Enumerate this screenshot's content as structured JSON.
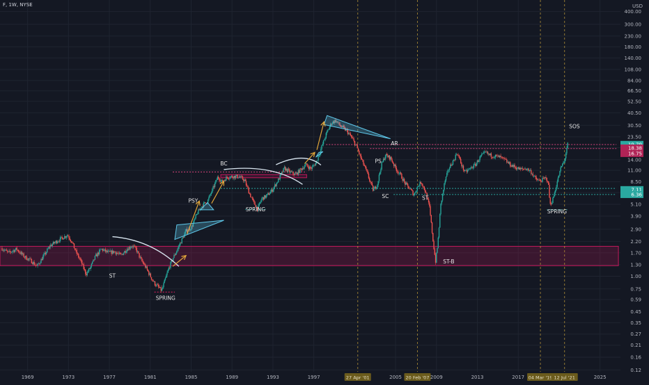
{
  "header": {
    "symbol": "F, 1W, NYSE"
  },
  "chart_data": {
    "type": "line",
    "symbol": "F",
    "interval": "1W",
    "exchange": "NYSE",
    "currency": "USD",
    "y_scale": "log",
    "ylim": [
      0.115,
      520
    ],
    "xlim": [
      1966.3,
      2027
    ],
    "y_ticks": [
      "400.00",
      "300.00",
      "230.00",
      "180.00",
      "140.00",
      "108.00",
      "84.00",
      "66.50",
      "52.50",
      "40.50",
      "30.50",
      "23.50",
      "18.38",
      "14.00",
      "11.00",
      "8.50",
      "6.65",
      "5.10",
      "3.90",
      "2.90",
      "2.20",
      "1.70",
      "1.30",
      "1.00",
      "0.75",
      "0.59",
      "0.45",
      "0.35",
      "0.27",
      "0.21",
      "0.16",
      "0.12"
    ],
    "x_ticks": [
      "1969",
      "1973",
      "1977",
      "1981",
      "1985",
      "1989",
      "1993",
      "1997",
      "2005",
      "2009",
      "2013",
      "2017",
      "2025"
    ],
    "x_highlight_labels": [
      {
        "text": "27 Apr '01",
        "x": 2001.3
      },
      {
        "text": "20 Feb '07",
        "x": 2007.14
      },
      {
        "text": "04 Mar '19",
        "x": 2019.17
      },
      {
        "text": "12 Jul '21",
        "x": 2021.53
      }
    ],
    "price_labels": [
      {
        "text": "19.79",
        "y": 19.79,
        "color": "#2aa8a0"
      },
      {
        "text": "18.38",
        "y": 18.38,
        "color": "#b02356"
      },
      {
        "text": "16.75",
        "y": 16.75,
        "color": "#b02356"
      },
      {
        "text": "7.11",
        "y": 7.11,
        "color": "#2aa8a0"
      },
      {
        "text": "6.36",
        "y": 6.36,
        "color": "#2aa8a0"
      }
    ],
    "series": [
      {
        "values": [
          [
            1966.5,
            1.9
          ],
          [
            1967.2,
            1.7
          ],
          [
            1968.0,
            1.85
          ],
          [
            1968.8,
            1.55
          ],
          [
            1969.5,
            1.4
          ],
          [
            1970.0,
            1.25
          ],
          [
            1970.6,
            1.55
          ],
          [
            1971.3,
            2.0
          ],
          [
            1972.2,
            2.3
          ],
          [
            1973.0,
            2.55
          ],
          [
            1973.4,
            2.2
          ],
          [
            1973.8,
            1.75
          ],
          [
            1974.3,
            1.4
          ],
          [
            1974.8,
            1.05
          ],
          [
            1975.2,
            1.2
          ],
          [
            1975.7,
            1.55
          ],
          [
            1976.3,
            1.85
          ],
          [
            1977.0,
            1.7
          ],
          [
            1977.6,
            1.75
          ],
          [
            1978.2,
            1.6
          ],
          [
            1978.8,
            1.85
          ],
          [
            1979.3,
            2.0
          ],
          [
            1979.7,
            1.85
          ],
          [
            1980.1,
            1.5
          ],
          [
            1980.6,
            1.25
          ],
          [
            1981.1,
            1.0
          ],
          [
            1981.5,
            0.85
          ],
          [
            1981.9,
            0.78
          ],
          [
            1982.2,
            0.72
          ],
          [
            1982.5,
            0.9
          ],
          [
            1982.9,
            1.2
          ],
          [
            1983.3,
            1.5
          ],
          [
            1983.7,
            1.8
          ],
          [
            1984.1,
            2.2
          ],
          [
            1984.6,
            2.8
          ],
          [
            1985.1,
            3.0
          ],
          [
            1985.7,
            4.2
          ],
          [
            1986.2,
            5.0
          ],
          [
            1986.7,
            5.5
          ],
          [
            1987.2,
            7.2
          ],
          [
            1987.7,
            9.5
          ],
          [
            1988.1,
            8.5
          ],
          [
            1988.6,
            9.4
          ],
          [
            1989.2,
            9.6
          ],
          [
            1989.8,
            9.5
          ],
          [
            1990.3,
            8.8
          ],
          [
            1990.8,
            6.5
          ],
          [
            1991.2,
            5.3
          ],
          [
            1991.6,
            4.6
          ],
          [
            1992.0,
            5.8
          ],
          [
            1992.5,
            6.2
          ],
          [
            1993.0,
            7.0
          ],
          [
            1993.6,
            8.8
          ],
          [
            1994.2,
            11.5
          ],
          [
            1994.8,
            10.5
          ],
          [
            1995.3,
            10.0
          ],
          [
            1995.8,
            11.2
          ],
          [
            1996.3,
            12.5
          ],
          [
            1996.8,
            11.4
          ],
          [
            1997.3,
            13.0
          ],
          [
            1997.8,
            18.0
          ],
          [
            1998.3,
            25.0
          ],
          [
            1998.8,
            32.0
          ],
          [
            1999.2,
            34.0
          ],
          [
            1999.7,
            30.0
          ],
          [
            2000.3,
            27.0
          ],
          [
            2000.8,
            23.0
          ],
          [
            2001.3,
            18.5
          ],
          [
            2001.7,
            14.5
          ],
          [
            2002.2,
            11.0
          ],
          [
            2002.6,
            8.5
          ],
          [
            2002.9,
            7.0
          ],
          [
            2003.3,
            8.0
          ],
          [
            2003.7,
            12.5
          ],
          [
            2004.1,
            15.5
          ],
          [
            2004.6,
            14.5
          ],
          [
            2005.1,
            11.5
          ],
          [
            2005.6,
            9.8
          ],
          [
            2006.0,
            8.2
          ],
          [
            2006.5,
            7.2
          ],
          [
            2006.9,
            6.3
          ],
          [
            2007.2,
            7.5
          ],
          [
            2007.6,
            8.5
          ],
          [
            2008.0,
            6.8
          ],
          [
            2008.4,
            4.8
          ],
          [
            2008.8,
            2.0
          ],
          [
            2009.0,
            1.4
          ],
          [
            2009.2,
            2.0
          ],
          [
            2009.5,
            5.0
          ],
          [
            2009.9,
            8.5
          ],
          [
            2010.3,
            11.5
          ],
          [
            2010.8,
            14.0
          ],
          [
            2011.1,
            16.5
          ],
          [
            2011.6,
            12.0
          ],
          [
            2011.9,
            10.5
          ],
          [
            2012.4,
            11.5
          ],
          [
            2012.9,
            12.5
          ],
          [
            2013.4,
            15.0
          ],
          [
            2013.9,
            16.5
          ],
          [
            2014.3,
            15.5
          ],
          [
            2014.8,
            15.2
          ],
          [
            2015.3,
            14.8
          ],
          [
            2015.8,
            13.8
          ],
          [
            2016.3,
            12.5
          ],
          [
            2016.8,
            11.8
          ],
          [
            2017.3,
            11.2
          ],
          [
            2017.8,
            11.5
          ],
          [
            2018.3,
            10.8
          ],
          [
            2018.8,
            9.0
          ],
          [
            2019.2,
            8.6
          ],
          [
            2019.7,
            9.2
          ],
          [
            2020.0,
            8.8
          ],
          [
            2020.2,
            5.0
          ],
          [
            2020.5,
            5.8
          ],
          [
            2020.9,
            8.5
          ],
          [
            2021.3,
            12.0
          ],
          [
            2021.6,
            13.5
          ],
          [
            2021.9,
            19.8
          ]
        ]
      }
    ],
    "zones": [
      {
        "kind": "box",
        "x0": 1966.3,
        "x1": 2026.8,
        "y0": 1.27,
        "y1": 1.97,
        "color": "#c2185b"
      },
      {
        "kind": "box",
        "x0": 1987.9,
        "x1": 1996.3,
        "y0": 9.3,
        "y1": 10.0,
        "color": "#c2185b"
      },
      {
        "kind": "hline",
        "x0": 1983.2,
        "x1": 1996.3,
        "y": 10.6,
        "color": "#d8457d"
      },
      {
        "kind": "hline",
        "x0": 1987.9,
        "x1": 2026.6,
        "y": 7.3,
        "color": "#2aa8a0"
      },
      {
        "kind": "hline",
        "x0": 1998.2,
        "x1": 2026.6,
        "y": 19.7,
        "color": "#d8457d"
      },
      {
        "kind": "hline",
        "x0": 2002.5,
        "x1": 2026.6,
        "y": 18.0,
        "color": "#d8457d"
      },
      {
        "kind": "hline",
        "x0": 2004.8,
        "x1": 2026.6,
        "y": 6.36,
        "color": "#2aa8a0"
      },
      {
        "kind": "hline",
        "x0": 1981.4,
        "x1": 1983.4,
        "y": 0.7,
        "color": "#e91e63"
      },
      {
        "kind": "hline",
        "x0": 1990.3,
        "x1": 1992.3,
        "y": 4.55,
        "color": "#2aa8a0"
      },
      {
        "kind": "hline",
        "x0": 2019.8,
        "x1": 2021.8,
        "y": 4.5,
        "color": "#2aa8a0"
      }
    ],
    "arcs": [
      {
        "points": [
          [
            1977.3,
            2.45
          ],
          [
            1980.8,
            2.0
          ],
          [
            1983.8,
            1.25
          ]
        ]
      },
      {
        "points": [
          [
            1988.2,
            11.2
          ],
          [
            1992.5,
            11.0
          ],
          [
            1995.9,
            8.0
          ]
        ]
      },
      {
        "points": [
          [
            1993.3,
            12.5
          ],
          [
            1995.8,
            14.5
          ],
          [
            1997.7,
            12.4
          ]
        ]
      }
    ],
    "triangles": [
      {
        "points": [
          [
            1983.4,
            2.3
          ],
          [
            1983.6,
            3.2
          ],
          [
            1988.2,
            3.55
          ]
        ]
      },
      {
        "points": [
          [
            1985.9,
            4.5
          ],
          [
            1986.6,
            5.3
          ],
          [
            1987.2,
            4.5
          ]
        ]
      },
      {
        "points": [
          [
            1997.2,
            14.8
          ],
          [
            1997.5,
            16.5
          ],
          [
            1997.9,
            16.8
          ]
        ]
      },
      {
        "points": [
          [
            1998.0,
            31.0
          ],
          [
            1998.3,
            38.0
          ],
          [
            2004.5,
            22.5
          ]
        ]
      }
    ],
    "arrows": [
      {
        "from": [
          1983.2,
          1.25
        ],
        "to": [
          1984.5,
          1.6
        ]
      },
      {
        "from": [
          1984.6,
          2.6
        ],
        "to": [
          1985.8,
          5.5
        ]
      },
      {
        "from": [
          1987.0,
          5.2
        ],
        "to": [
          1988.2,
          8.6
        ]
      },
      {
        "from": [
          1996.1,
          12.8
        ],
        "to": [
          1997.1,
          16.5
        ]
      },
      {
        "from": [
          1997.3,
          17.5
        ],
        "to": [
          1998.0,
          33.0
        ]
      }
    ],
    "vlines": [
      2001.3,
      2007.14,
      2019.17,
      2021.53
    ],
    "annotations": [
      {
        "text": "ST",
        "x": 1977.3,
        "y": 0.97
      },
      {
        "text": "SPRING",
        "x": 1982.5,
        "y": 0.585
      },
      {
        "text": "PSY",
        "x": 1985.2,
        "y": 5.3
      },
      {
        "text": "BC",
        "x": 1988.2,
        "y": 12.3
      },
      {
        "text": "SPRING",
        "x": 1991.3,
        "y": 4.35
      },
      {
        "text": "PS",
        "x": 2003.3,
        "y": 13.0
      },
      {
        "text": "AR",
        "x": 2004.9,
        "y": 19.4
      },
      {
        "text": "SC",
        "x": 2004.0,
        "y": 5.85
      },
      {
        "text": "ST",
        "x": 2007.9,
        "y": 5.65
      },
      {
        "text": "ST-B",
        "x": 2010.2,
        "y": 1.34
      },
      {
        "text": "SPRING",
        "x": 2020.8,
        "y": 4.15
      },
      {
        "text": "SOS",
        "x": 2022.5,
        "y": 28.5
      }
    ],
    "colors": {
      "background": "#141823",
      "grid": "#1f2430",
      "up": "#26a69a",
      "down": "#ef5350",
      "zone": "#c2185b",
      "pattern": "#5fc8ea",
      "arrow": "#e2a63a",
      "arc": "#d9e6f0",
      "teal_line": "#2aa8a0",
      "date_highlight": "#6b5b1c",
      "axis_text": "#b2b5be"
    },
    "grid": true
  }
}
